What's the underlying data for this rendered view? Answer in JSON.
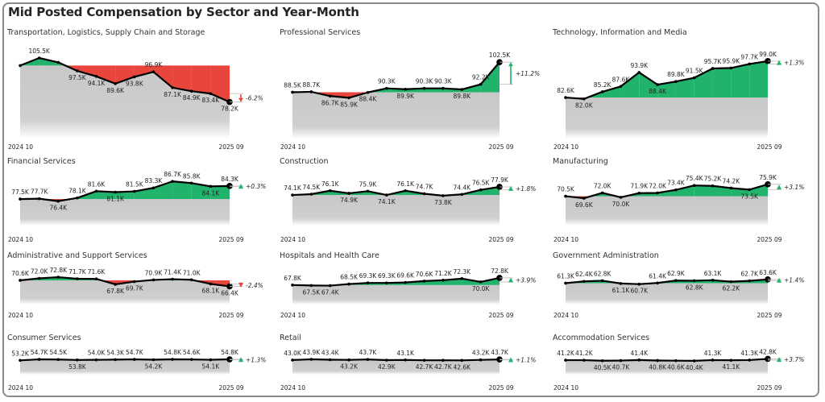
{
  "header": {
    "title": "Mid Posted Compensation by Sector and Year-Month"
  },
  "colors": {
    "up": "#21b36b",
    "down": "#e8453c",
    "base": "#c8c8c8",
    "line": "#000000"
  },
  "chart_data": [
    {
      "type": "area",
      "title": "Transportation, Logistics, Supply Chain and Storage",
      "x_start": "2024 10",
      "x_end": "2025 09",
      "unit": "K",
      "values": [
        100.8,
        105.5,
        102.8,
        97.5,
        94.1,
        89.6,
        93.8,
        96.9,
        87.1,
        84.9,
        83.4,
        78.2
      ],
      "labeled": [
        false,
        true,
        false,
        true,
        true,
        true,
        true,
        true,
        true,
        true,
        true,
        true
      ],
      "change": "-6.2%",
      "direction": "down"
    },
    {
      "type": "area",
      "title": "Professional Services",
      "x_start": "2024 10",
      "x_end": "2025 09",
      "unit": "K",
      "values": [
        88.5,
        88.7,
        86.7,
        85.9,
        88.4,
        90.3,
        89.9,
        90.3,
        90.3,
        89.8,
        92.2,
        102.5
      ],
      "change": "+11.2%",
      "direction": "up"
    },
    {
      "type": "area",
      "title": "Technology, Information and Media",
      "x_start": "2024 10",
      "x_end": "2025 09",
      "unit": "K",
      "values": [
        82.6,
        82.0,
        85.2,
        87.6,
        93.9,
        88.4,
        89.8,
        91.5,
        95.7,
        95.9,
        97.7,
        99.0
      ],
      "change": "+1.3%",
      "direction": "up"
    },
    {
      "type": "area",
      "title": "Financial Services",
      "x_start": "2024 10",
      "x_end": "2025 09",
      "unit": "K",
      "values": [
        77.5,
        77.7,
        76.4,
        78.1,
        81.6,
        81.1,
        81.5,
        83.3,
        86.7,
        85.8,
        84.1,
        84.3
      ],
      "change": "+0.3%",
      "direction": "up"
    },
    {
      "type": "area",
      "title": "Construction",
      "x_start": "2024 10",
      "x_end": "2025 09",
      "unit": "K",
      "values": [
        74.1,
        74.5,
        76.1,
        74.9,
        75.9,
        74.1,
        76.1,
        74.7,
        73.8,
        74.4,
        76.5,
        77.9
      ],
      "change": "+1.8%",
      "direction": "up"
    },
    {
      "type": "area",
      "title": "Manufacturing",
      "x_start": "2024 10",
      "x_end": "2025 09",
      "unit": "K",
      "values": [
        70.5,
        69.6,
        72.0,
        70.0,
        71.9,
        72.0,
        73.4,
        75.4,
        75.2,
        74.2,
        73.5,
        75.9
      ],
      "change": "+3.1%",
      "direction": "up"
    },
    {
      "type": "area",
      "title": "Administrative and Support Services",
      "x_start": "2024 10",
      "x_end": "2025 09",
      "unit": "K",
      "values": [
        70.6,
        72.0,
        72.8,
        71.7,
        71.6,
        67.8,
        69.7,
        70.9,
        71.4,
        71.0,
        68.1,
        66.4
      ],
      "change": "-2.4%",
      "direction": "down"
    },
    {
      "type": "area",
      "title": "Hospitals and Health Care",
      "x_start": "2024 10",
      "x_end": "2025 09",
      "unit": "K",
      "values": [
        67.8,
        67.5,
        67.4,
        68.5,
        69.3,
        69.3,
        69.6,
        70.6,
        71.2,
        72.3,
        70.0,
        72.8
      ],
      "change": "+3.9%",
      "direction": "up"
    },
    {
      "type": "area",
      "title": "Government Administration",
      "x_start": "2024 10",
      "x_end": "2025 09",
      "unit": "K",
      "values": [
        61.3,
        62.4,
        62.8,
        61.1,
        60.7,
        61.4,
        62.9,
        62.8,
        63.1,
        62.2,
        62.7,
        63.6
      ],
      "change": "+1.4%",
      "direction": "up"
    },
    {
      "type": "area",
      "title": "Consumer Services",
      "x_start": "2024 10",
      "x_end": "2025 09",
      "unit": "K",
      "values": [
        53.2,
        54.7,
        54.5,
        53.8,
        54.0,
        54.3,
        54.7,
        54.2,
        54.8,
        54.6,
        54.1,
        54.8
      ],
      "change": "+1.3%",
      "direction": "up"
    },
    {
      "type": "area",
      "title": "Retail",
      "x_start": "2024 10",
      "x_end": "2025 09",
      "unit": "K",
      "values": [
        43.0,
        43.9,
        43.4,
        43.2,
        43.7,
        42.9,
        43.1,
        42.7,
        42.7,
        42.6,
        43.2,
        43.7
      ],
      "change": "+1.1%",
      "direction": "up"
    },
    {
      "type": "area",
      "title": "Accommodation Services",
      "x_start": "2024 10",
      "x_end": "2025 09",
      "unit": "K",
      "values": [
        41.2,
        41.2,
        40.5,
        40.7,
        41.4,
        40.8,
        40.6,
        40.4,
        41.3,
        41.1,
        41.3,
        42.8
      ],
      "change": "+3.7%",
      "direction": "up"
    }
  ]
}
